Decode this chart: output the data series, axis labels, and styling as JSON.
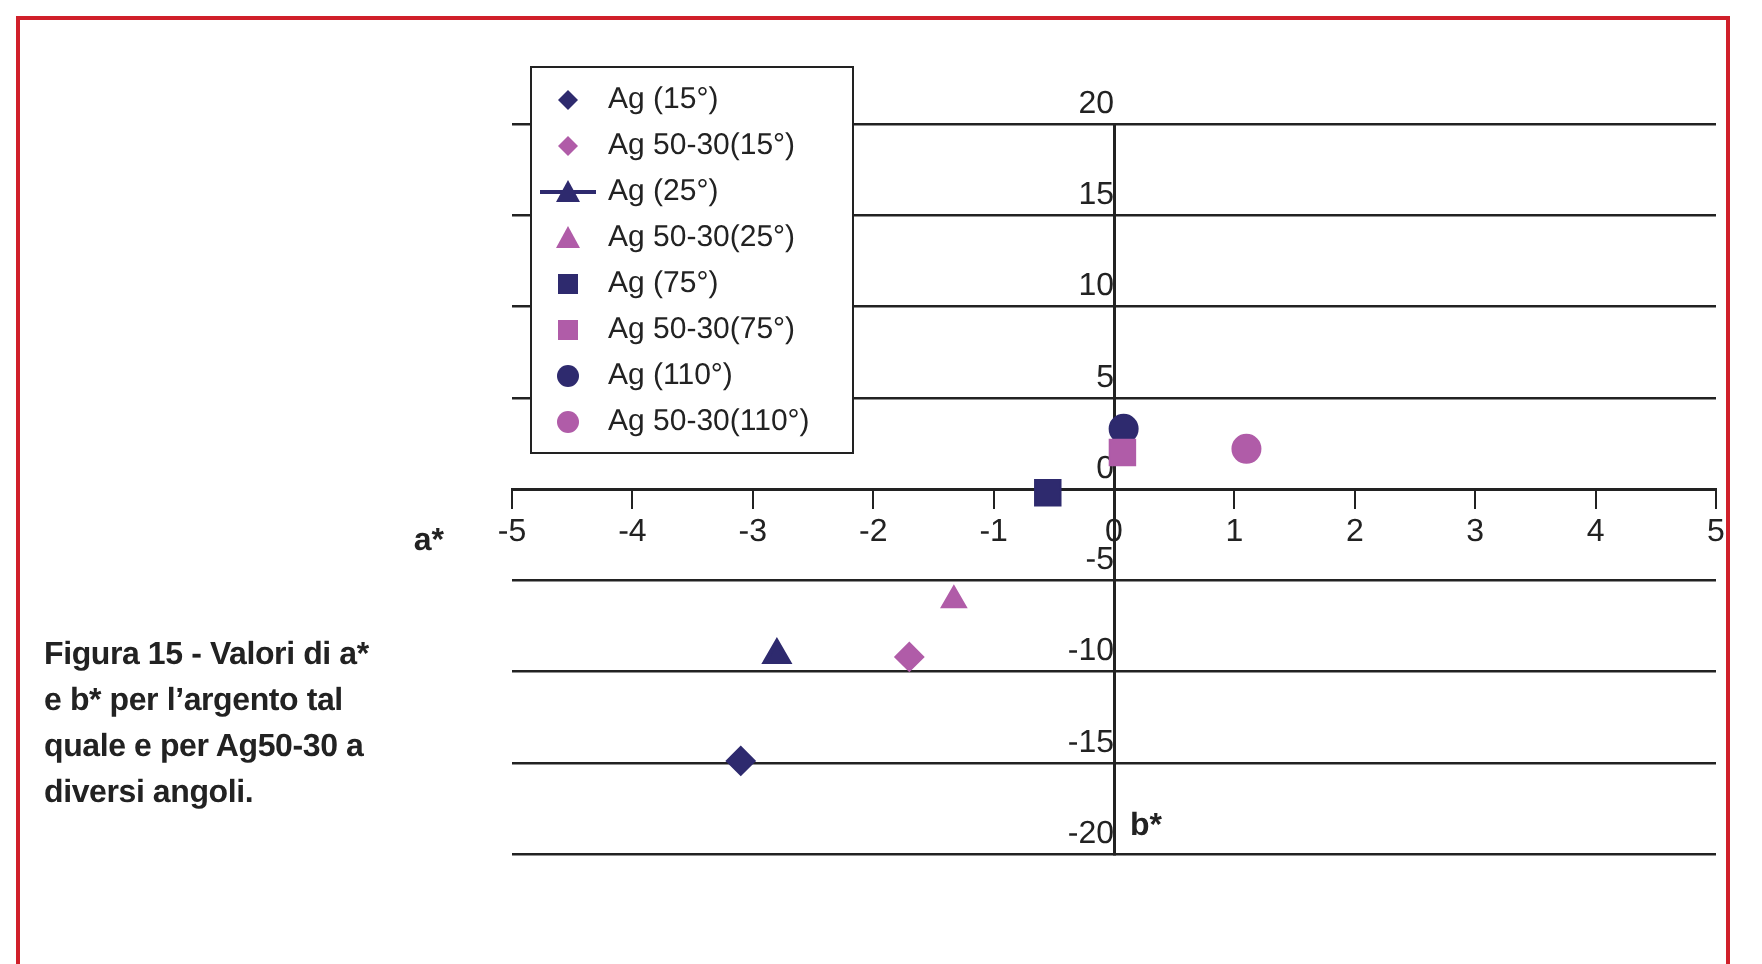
{
  "chart_data": {
    "type": "scatter",
    "xlabel": "a*",
    "ylabel": "b*",
    "annotations": [
      "Figura 15 - Valori di a* e b* per l’argento tal quale e per Ag50-30 a diversi angoli."
    ],
    "xlim": [
      -5,
      5
    ],
    "xticks": [
      -5,
      -4,
      -3,
      -2,
      -1,
      0,
      1,
      2,
      3,
      4,
      5
    ],
    "ylim": [
      -20,
      20
    ],
    "yticks": [
      -20,
      -15,
      -10,
      -5,
      0,
      5,
      10,
      15,
      20
    ],
    "grid": "y",
    "legend": "top left",
    "series": [
      {
        "name": "Ag (15°)",
        "color": "#2e2a6e",
        "marker": "diamond",
        "x": [
          -3.1
        ],
        "values": [
          -14.9
        ]
      },
      {
        "name": "Ag 50-30(15°)",
        "color": "#b05ca8",
        "marker": "diamond",
        "x": [
          -1.7
        ],
        "values": [
          -9.2
        ]
      },
      {
        "name": "Ag (25°)",
        "type": "line",
        "color": "#2e2a6e",
        "marker": "triangle",
        "x": [
          -2.8
        ],
        "values": [
          -9.1
        ]
      },
      {
        "name": "Ag 50-30(25°)",
        "color": "#b05ca8",
        "marker": "triangle",
        "x": [
          -1.33
        ],
        "values": [
          -6.1
        ]
      },
      {
        "name": "Ag (75°)",
        "color": "#2e2a6e",
        "marker": "square",
        "x": [
          -0.55
        ],
        "values": [
          -0.2
        ]
      },
      {
        "name": "Ag 50-30(75°)",
        "color": "#b05ca8",
        "marker": "square",
        "x": [
          0.07
        ],
        "values": [
          2.0
        ]
      },
      {
        "name": "Ag (110°)",
        "color": "#2e2a6e",
        "marker": "circle",
        "x": [
          0.08
        ],
        "values": [
          3.3
        ]
      },
      {
        "name": "Ag 50-30(110°)",
        "color": "#b05ca8",
        "marker": "circle",
        "x": [
          1.1
        ],
        "values": [
          2.2
        ]
      }
    ]
  }
}
